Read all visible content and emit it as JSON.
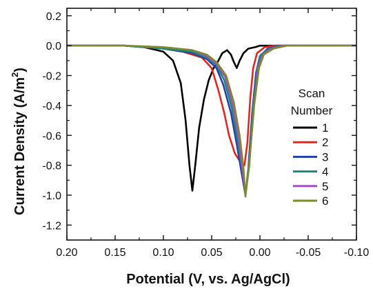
{
  "chart_data": {
    "type": "line",
    "xlabel": "Potential (V, vs. Ag/AgCl)",
    "ylabel_main": "Current Density (A/m",
    "ylabel_sup": "2",
    "ylabel_tail": ")",
    "xlim": [
      0.2,
      -0.1
    ],
    "ylim": [
      -1.3,
      0.25
    ],
    "x_ticks": [
      0.2,
      0.15,
      0.1,
      0.05,
      0.0,
      -0.05,
      -0.1
    ],
    "x_tick_labels": [
      "0.20",
      "0.15",
      "0.10",
      "0.05",
      "0.00",
      "-0.05",
      "-0.10"
    ],
    "y_ticks": [
      0.2,
      0.0,
      -0.2,
      -0.4,
      -0.6,
      -0.8,
      -1.0,
      -1.2
    ],
    "y_tick_labels": [
      "0.2",
      "0.0",
      "-0.2",
      "-0.4",
      "-0.6",
      "-0.8",
      "-1.0",
      "-1.2"
    ],
    "grid": false,
    "legend": {
      "title_line1": "Scan",
      "title_line2": "Number",
      "placement": "right"
    },
    "series": [
      {
        "name": "1",
        "color": "#000000",
        "points": [
          [
            0.2,
            0.0
          ],
          [
            0.14,
            0.0
          ],
          [
            0.12,
            -0.01
          ],
          [
            0.1,
            -0.04
          ],
          [
            0.09,
            -0.1
          ],
          [
            0.082,
            -0.25
          ],
          [
            0.077,
            -0.5
          ],
          [
            0.073,
            -0.8
          ],
          [
            0.07,
            -0.97
          ],
          [
            0.067,
            -0.8
          ],
          [
            0.063,
            -0.55
          ],
          [
            0.058,
            -0.36
          ],
          [
            0.053,
            -0.23
          ],
          [
            0.048,
            -0.15
          ],
          [
            0.043,
            -0.1
          ],
          [
            0.039,
            -0.05
          ],
          [
            0.034,
            -0.03
          ],
          [
            0.03,
            -0.06
          ],
          [
            0.027,
            -0.11
          ],
          [
            0.024,
            -0.15
          ],
          [
            0.021,
            -0.1
          ],
          [
            0.017,
            -0.05
          ],
          [
            0.012,
            -0.02
          ],
          [
            0.005,
            -0.01
          ],
          [
            0.0,
            0.0
          ],
          [
            -0.1,
            0.0
          ]
        ]
      },
      {
        "name": "2",
        "color": "#e8231c",
        "points": [
          [
            0.2,
            0.0
          ],
          [
            0.14,
            0.0
          ],
          [
            0.1,
            -0.02
          ],
          [
            0.08,
            -0.04
          ],
          [
            0.06,
            -0.08
          ],
          [
            0.05,
            -0.15
          ],
          [
            0.043,
            -0.3
          ],
          [
            0.037,
            -0.45
          ],
          [
            0.032,
            -0.6
          ],
          [
            0.026,
            -0.72
          ],
          [
            0.02,
            -0.78
          ],
          [
            0.016,
            -0.8
          ],
          [
            0.013,
            -0.65
          ],
          [
            0.01,
            -0.35
          ],
          [
            0.007,
            -0.15
          ],
          [
            0.003,
            -0.05
          ],
          [
            -0.005,
            -0.01
          ],
          [
            -0.015,
            0.0
          ],
          [
            -0.1,
            0.0
          ]
        ]
      },
      {
        "name": "3",
        "color": "#2440a8",
        "points": [
          [
            0.2,
            0.0
          ],
          [
            0.14,
            0.0
          ],
          [
            0.1,
            -0.02
          ],
          [
            0.07,
            -0.05
          ],
          [
            0.055,
            -0.09
          ],
          [
            0.045,
            -0.15
          ],
          [
            0.038,
            -0.26
          ],
          [
            0.03,
            -0.45
          ],
          [
            0.024,
            -0.66
          ],
          [
            0.019,
            -0.85
          ],
          [
            0.015,
            -1.0
          ],
          [
            0.012,
            -0.82
          ],
          [
            0.008,
            -0.45
          ],
          [
            0.004,
            -0.18
          ],
          [
            0.0,
            -0.07
          ],
          [
            -0.008,
            -0.02
          ],
          [
            -0.02,
            0.0
          ],
          [
            -0.1,
            0.0
          ]
        ]
      },
      {
        "name": "4",
        "color": "#1a8a78",
        "points": [
          [
            0.2,
            0.0
          ],
          [
            0.14,
            0.0
          ],
          [
            0.1,
            -0.02
          ],
          [
            0.07,
            -0.04
          ],
          [
            0.055,
            -0.08
          ],
          [
            0.045,
            -0.13
          ],
          [
            0.037,
            -0.23
          ],
          [
            0.029,
            -0.42
          ],
          [
            0.023,
            -0.64
          ],
          [
            0.018,
            -0.84
          ],
          [
            0.015,
            -1.0
          ],
          [
            0.011,
            -0.8
          ],
          [
            0.007,
            -0.42
          ],
          [
            0.003,
            -0.16
          ],
          [
            -0.001,
            -0.06
          ],
          [
            -0.01,
            -0.02
          ],
          [
            -0.022,
            0.0
          ],
          [
            -0.1,
            0.0
          ]
        ]
      },
      {
        "name": "5",
        "color": "#a24fc2",
        "points": [
          [
            0.2,
            0.0
          ],
          [
            0.14,
            0.0
          ],
          [
            0.1,
            -0.01
          ],
          [
            0.07,
            -0.03
          ],
          [
            0.055,
            -0.07
          ],
          [
            0.045,
            -0.12
          ],
          [
            0.036,
            -0.21
          ],
          [
            0.028,
            -0.4
          ],
          [
            0.022,
            -0.62
          ],
          [
            0.018,
            -0.83
          ],
          [
            0.015,
            -1.0
          ],
          [
            0.011,
            -0.78
          ],
          [
            0.006,
            -0.4
          ],
          [
            0.002,
            -0.15
          ],
          [
            -0.003,
            -0.06
          ],
          [
            -0.012,
            -0.02
          ],
          [
            -0.025,
            0.0
          ],
          [
            -0.1,
            0.0
          ]
        ]
      },
      {
        "name": "6",
        "color": "#7f8a2a",
        "points": [
          [
            0.2,
            0.0
          ],
          [
            0.14,
            0.0
          ],
          [
            0.1,
            -0.01
          ],
          [
            0.07,
            -0.03
          ],
          [
            0.055,
            -0.06
          ],
          [
            0.045,
            -0.11
          ],
          [
            0.035,
            -0.2
          ],
          [
            0.027,
            -0.38
          ],
          [
            0.021,
            -0.6
          ],
          [
            0.017,
            -0.82
          ],
          [
            0.015,
            -1.01
          ],
          [
            0.011,
            -0.78
          ],
          [
            0.006,
            -0.4
          ],
          [
            0.001,
            -0.15
          ],
          [
            -0.004,
            -0.06
          ],
          [
            -0.014,
            -0.02
          ],
          [
            -0.028,
            0.0
          ],
          [
            -0.1,
            0.0
          ]
        ]
      }
    ]
  }
}
